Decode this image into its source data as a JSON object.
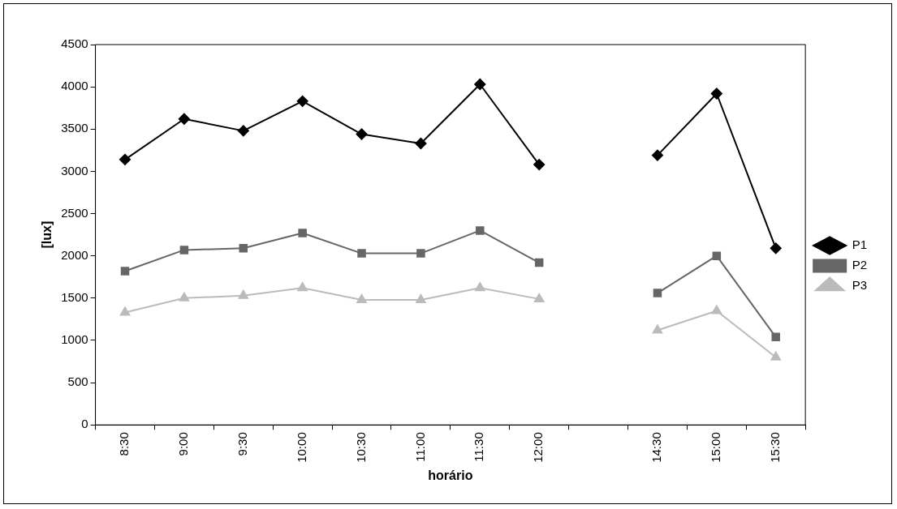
{
  "chart_data": {
    "type": "line",
    "xlabel": "horário",
    "ylabel": "[lux]",
    "categories": [
      "8:30",
      "9:00",
      "9:30",
      "10:00",
      "10:30",
      "11:00",
      "11:30",
      "12:00",
      null,
      "14:30",
      "15:00",
      "15:30"
    ],
    "series": [
      {
        "name": "P1",
        "color": "#000000",
        "marker": "diamond",
        "values": [
          3140,
          3620,
          3480,
          3830,
          3440,
          3330,
          4030,
          3080,
          null,
          3190,
          3920,
          2090
        ]
      },
      {
        "name": "P2",
        "color": "#666666",
        "marker": "square",
        "values": [
          1820,
          2070,
          2090,
          2270,
          2030,
          2030,
          2300,
          1920,
          null,
          1560,
          2000,
          1040
        ]
      },
      {
        "name": "P3",
        "color": "#bbbbbb",
        "marker": "triangle",
        "values": [
          1330,
          1500,
          1530,
          1620,
          1480,
          1480,
          1620,
          1490,
          null,
          1120,
          1350,
          800
        ]
      }
    ],
    "ylim": [
      0,
      4500
    ],
    "yticks": [
      0,
      500,
      1000,
      1500,
      2000,
      2500,
      3000,
      3500,
      4000,
      4500
    ],
    "grid": false,
    "legend": "right"
  }
}
